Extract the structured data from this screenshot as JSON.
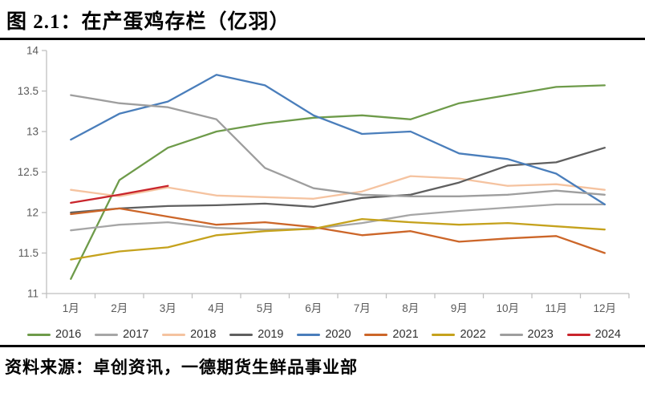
{
  "header": {
    "title": "图 2.1：在产蛋鸡存栏（亿羽）"
  },
  "footer": {
    "source": "资料来源：卓创资讯，一德期货生鲜品事业部"
  },
  "chart_data": {
    "type": "line",
    "title": "在产蛋鸡存栏（亿羽）",
    "x_categories": [
      "1月",
      "2月",
      "3月",
      "4月",
      "5月",
      "6月",
      "7月",
      "8月",
      "9月",
      "10月",
      "11月",
      "12月"
    ],
    "ylim": [
      11,
      14
    ],
    "yticks": [
      11,
      11.5,
      12,
      12.5,
      13,
      13.5,
      14
    ],
    "grid": false,
    "legend_position": "bottom",
    "axis_color": "#bfbfbf",
    "tick_label_color": "#595959",
    "series": [
      {
        "name": "2016",
        "color": "#6E9B4A",
        "values": [
          11.18,
          12.4,
          12.8,
          13.0,
          13.1,
          13.17,
          13.2,
          13.15,
          13.35,
          13.45,
          13.55,
          13.57
        ]
      },
      {
        "name": "2017",
        "color": "#A6A6A6",
        "values": [
          11.78,
          11.85,
          11.88,
          11.81,
          11.79,
          11.8,
          11.87,
          11.97,
          12.02,
          12.06,
          12.1,
          12.1
        ]
      },
      {
        "name": "2018",
        "color": "#F5C3A0",
        "values": [
          12.28,
          12.2,
          12.31,
          12.21,
          12.19,
          12.17,
          12.26,
          12.45,
          12.42,
          12.33,
          12.35,
          12.28
        ]
      },
      {
        "name": "2019",
        "color": "#5F5F5F",
        "values": [
          12.0,
          12.05,
          12.08,
          12.09,
          12.11,
          12.07,
          12.18,
          12.22,
          12.37,
          12.58,
          12.62,
          12.8
        ]
      },
      {
        "name": "2020",
        "color": "#4A7EBB",
        "values": [
          12.9,
          13.22,
          13.37,
          13.7,
          13.57,
          13.2,
          12.97,
          13.0,
          12.73,
          12.66,
          12.48,
          12.1
        ]
      },
      {
        "name": "2021",
        "color": "#CC6629",
        "values": [
          11.98,
          12.05,
          11.95,
          11.85,
          11.88,
          11.82,
          11.72,
          11.77,
          11.64,
          11.68,
          11.71,
          11.5
        ]
      },
      {
        "name": "2022",
        "color": "#C5A21D",
        "values": [
          11.42,
          11.52,
          11.57,
          11.72,
          11.77,
          11.8,
          11.92,
          11.88,
          11.85,
          11.87,
          11.83,
          11.79
        ]
      },
      {
        "name": "2023",
        "color": "#9E9E9E",
        "values": [
          13.45,
          13.35,
          13.3,
          13.15,
          12.55,
          12.3,
          12.22,
          12.2,
          12.2,
          12.22,
          12.27,
          12.22
        ]
      },
      {
        "name": "2024",
        "color": "#C9252C",
        "values": [
          12.12,
          12.22,
          12.33,
          null,
          null,
          null,
          null,
          null,
          null,
          null,
          null,
          null
        ]
      }
    ]
  }
}
